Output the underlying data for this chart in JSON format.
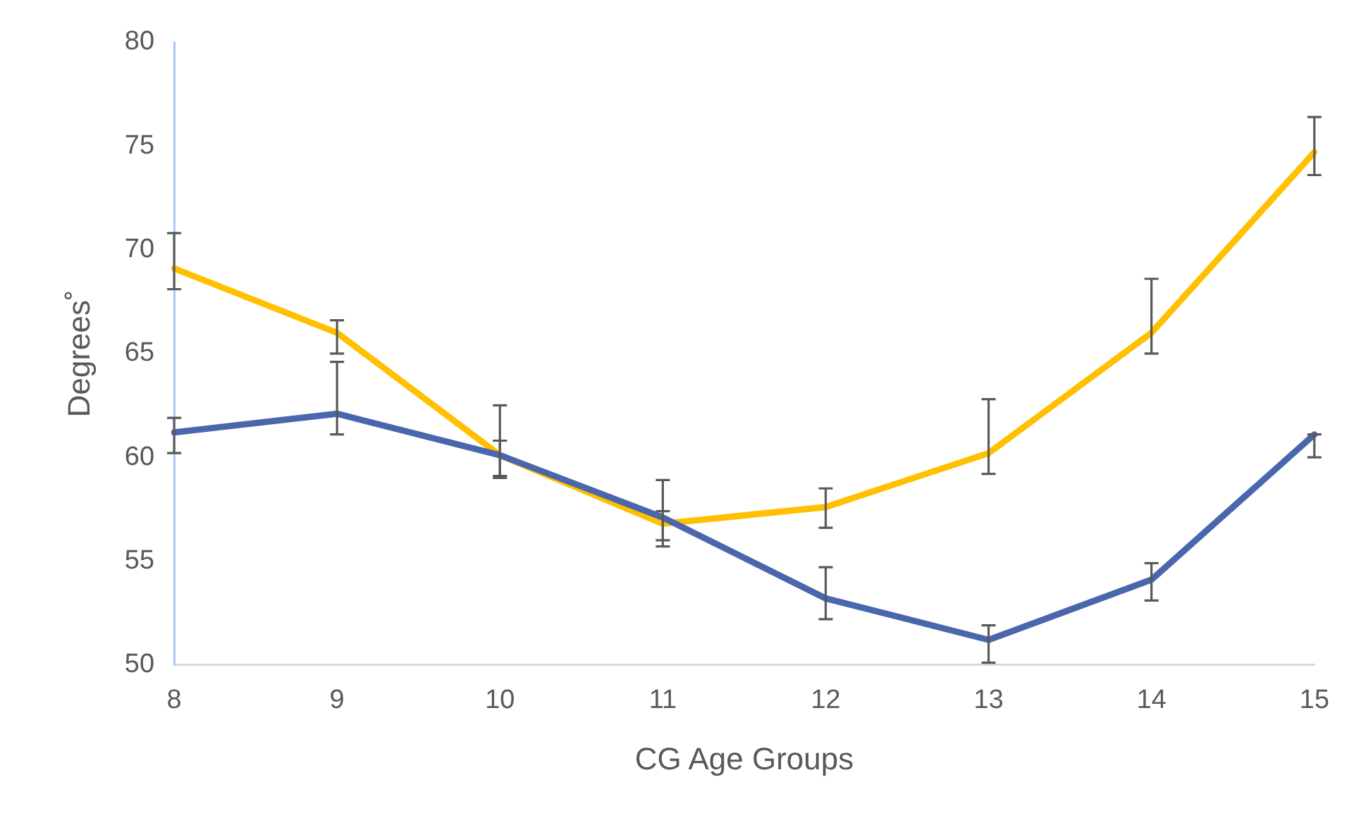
{
  "chart_data": {
    "type": "line",
    "xlabel": "CG Age Groups",
    "ylabel": "Degrees˚",
    "categories": [
      "8",
      "9",
      "10",
      "11",
      "12",
      "13",
      "14",
      "15"
    ],
    "ylim": [
      50,
      80
    ],
    "yticks": [
      50,
      55,
      60,
      65,
      70,
      75,
      80
    ],
    "grid": false,
    "legend": false,
    "marker": "none",
    "line_style": "solid",
    "series": [
      {
        "color": "#4a66ac",
        "values": [
          61.2,
          62.1,
          60.1,
          57.1,
          53.2,
          51.2,
          54.1,
          61.1
        ],
        "errors": [
          [
            60.2,
            61.9
          ],
          [
            61.1,
            64.6
          ],
          [
            59.0,
            60.8
          ],
          [
            55.7,
            57.4
          ],
          [
            52.2,
            54.7
          ],
          [
            50.1,
            51.9
          ],
          [
            53.1,
            54.9
          ],
          [
            60.0,
            61.1
          ]
        ]
      },
      {
        "color": "#ffc000",
        "values": [
          69.1,
          66.0,
          60.1,
          56.8,
          57.6,
          60.2,
          66.0,
          74.7
        ],
        "errors": [
          [
            68.1,
            70.8
          ],
          [
            65.0,
            66.6
          ],
          [
            59.1,
            62.5
          ],
          [
            56.0,
            58.9
          ],
          [
            56.6,
            58.5
          ],
          [
            59.2,
            62.8
          ],
          [
            65.0,
            68.6
          ],
          [
            73.6,
            76.4
          ]
        ]
      }
    ]
  }
}
